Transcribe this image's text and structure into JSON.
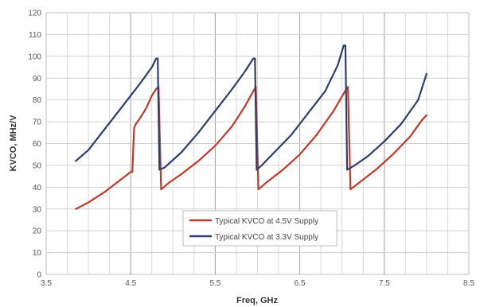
{
  "chart_data": {
    "type": "line",
    "title": "",
    "xlabel": "Freq, GHz",
    "ylabel": "KVCO, MHz/V",
    "xlim": [
      3.5,
      8.5
    ],
    "ylim": [
      0,
      120
    ],
    "xticks": [
      "3.5",
      "4.5",
      "5.5",
      "6.5",
      "7.5",
      "8.5"
    ],
    "yticks": [
      "0",
      "10",
      "20",
      "30",
      "40",
      "50",
      "60",
      "70",
      "80",
      "90",
      "100",
      "110",
      "120"
    ],
    "x_minor_step": 0.25,
    "grid": true,
    "legend_position": "bottom-center",
    "series": [
      {
        "name": "Typical KVCO at 4.5V Supply",
        "color": "#c0392b",
        "points": [
          [
            3.85,
            30
          ],
          [
            4.0,
            33
          ],
          [
            4.2,
            38
          ],
          [
            4.4,
            44
          ],
          [
            4.5,
            47
          ],
          [
            4.52,
            47
          ],
          [
            4.54,
            67
          ],
          [
            4.56,
            69
          ],
          [
            4.6,
            71
          ],
          [
            4.68,
            76
          ],
          [
            4.75,
            82
          ],
          [
            4.8,
            85
          ],
          [
            4.83,
            86
          ],
          [
            4.86,
            39
          ],
          [
            4.95,
            42
          ],
          [
            5.1,
            46
          ],
          [
            5.3,
            52
          ],
          [
            5.5,
            59
          ],
          [
            5.7,
            68
          ],
          [
            5.85,
            77
          ],
          [
            5.95,
            84
          ],
          [
            5.98,
            86
          ],
          [
            6.01,
            39
          ],
          [
            6.1,
            42
          ],
          [
            6.3,
            48
          ],
          [
            6.5,
            55
          ],
          [
            6.7,
            64
          ],
          [
            6.9,
            75
          ],
          [
            7.05,
            85
          ],
          [
            7.07,
            86
          ],
          [
            7.1,
            39
          ],
          [
            7.2,
            42
          ],
          [
            7.4,
            48
          ],
          [
            7.6,
            55
          ],
          [
            7.8,
            63
          ],
          [
            7.95,
            71
          ],
          [
            8.0,
            73
          ]
        ]
      },
      {
        "name": "Typical KVCO at 3.3V Supply",
        "color": "#2c3e6b",
        "points": [
          [
            3.85,
            52
          ],
          [
            4.0,
            57
          ],
          [
            4.2,
            67
          ],
          [
            4.4,
            77
          ],
          [
            4.6,
            87
          ],
          [
            4.75,
            95
          ],
          [
            4.8,
            99
          ],
          [
            4.82,
            99
          ],
          [
            4.84,
            48
          ],
          [
            4.9,
            49
          ],
          [
            5.1,
            56
          ],
          [
            5.3,
            65
          ],
          [
            5.5,
            75
          ],
          [
            5.7,
            85
          ],
          [
            5.85,
            93
          ],
          [
            5.95,
            99
          ],
          [
            5.97,
            99
          ],
          [
            5.99,
            48
          ],
          [
            6.05,
            50
          ],
          [
            6.2,
            56
          ],
          [
            6.4,
            64
          ],
          [
            6.6,
            74
          ],
          [
            6.8,
            84
          ],
          [
            6.95,
            96
          ],
          [
            7.02,
            105
          ],
          [
            7.04,
            105
          ],
          [
            7.06,
            48
          ],
          [
            7.15,
            50
          ],
          [
            7.3,
            54
          ],
          [
            7.5,
            61
          ],
          [
            7.7,
            69
          ],
          [
            7.9,
            80
          ],
          [
            8.0,
            92
          ]
        ]
      }
    ]
  }
}
